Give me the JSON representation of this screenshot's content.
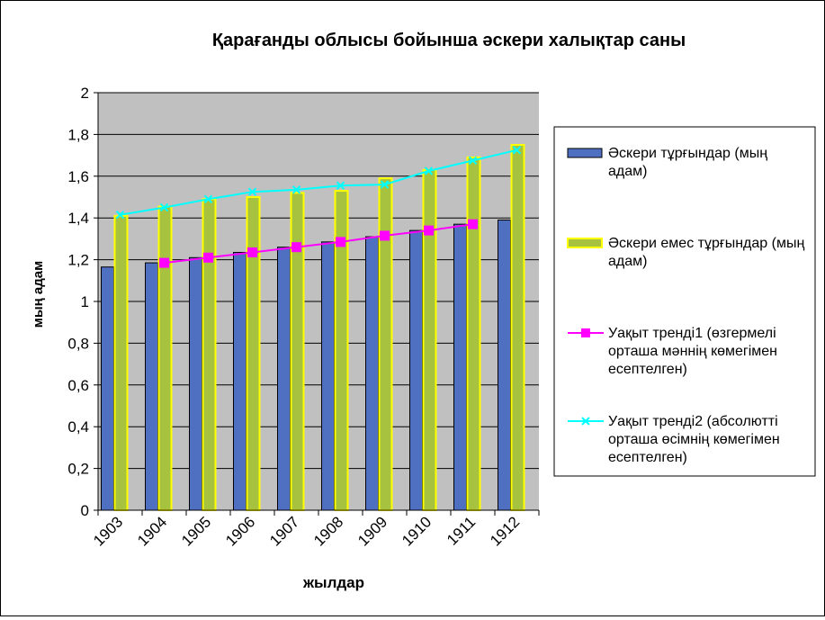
{
  "chart_data": {
    "type": "bar",
    "title": "Қарағанды облысы бойынша әскери халықтар саны",
    "xlabel": "жылдар",
    "ylabel": "мың адам",
    "categories": [
      "1903",
      "1904",
      "1905",
      "1906",
      "1907",
      "1908",
      "1909",
      "1910",
      "1911",
      "1912"
    ],
    "ylim": [
      0,
      2
    ],
    "yticks": [
      "0",
      "0,2",
      "0,4",
      "0,6",
      "0,8",
      "1",
      "1,2",
      "1,4",
      "1,6",
      "1,8",
      "2"
    ],
    "grid": true,
    "legend_position": "right",
    "series": [
      {
        "name": "Әскери тұрғындар (мың адам)",
        "kind": "bar",
        "color": "#4F6FC0",
        "values": [
          1.165,
          1.185,
          1.21,
          1.235,
          1.26,
          1.285,
          1.31,
          1.34,
          1.37,
          1.39
        ]
      },
      {
        "name": "Әскери емес тұрғындар (мың адам)",
        "kind": "bar",
        "color": "#A7C23E",
        "border_color": "#FFFF00",
        "values": [
          1.41,
          1.455,
          1.49,
          1.5,
          1.52,
          1.53,
          1.59,
          1.63,
          1.69,
          1.75
        ]
      },
      {
        "name": "Уақыт тренді1 (өзгермелі орташа мәннің көмегімен есептелген)",
        "kind": "line",
        "color": "#FF00FF",
        "marker": "square",
        "values": [
          null,
          1.185,
          1.21,
          1.235,
          1.26,
          1.285,
          1.315,
          1.34,
          1.37,
          null
        ]
      },
      {
        "name": "Уақыт тренді2 (абсолютті орташа өсімнің көмегімен есептелген)",
        "kind": "line",
        "color": "#00FFFF",
        "marker": "x",
        "values": [
          1.415,
          1.45,
          1.49,
          1.525,
          1.535,
          1.555,
          1.56,
          1.625,
          1.675,
          1.725
        ]
      }
    ]
  }
}
